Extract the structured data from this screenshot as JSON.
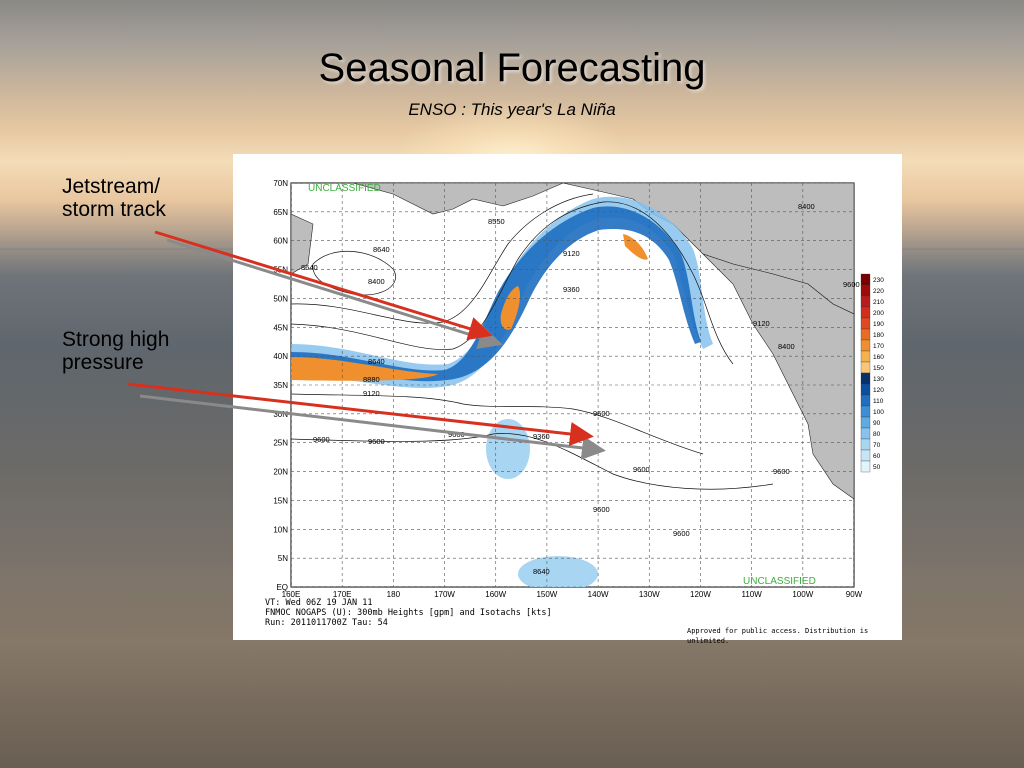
{
  "slide": {
    "title": "Seasonal Forecasting",
    "subtitle": "ENSO : This year's La Niña"
  },
  "annotations": {
    "jetstream": [
      "Jetstream/",
      "storm track"
    ],
    "high_pressure": [
      "Strong high",
      "pressure"
    ]
  },
  "map": {
    "lat_labels": [
      "70N",
      "65N",
      "60N",
      "55N",
      "50N",
      "45N",
      "40N",
      "35N",
      "30N",
      "25N",
      "20N",
      "15N",
      "10N",
      "5N",
      "EQ"
    ],
    "lon_labels": [
      "160E",
      "170E",
      "180",
      "170W",
      "160W",
      "150W",
      "140W",
      "130W",
      "120W",
      "110W",
      "100W",
      "90W"
    ],
    "classification_top": "UNCLASSIFIED",
    "classification_bottom": "UNCLASSIFIED",
    "legend_values": [
      "230",
      "220",
      "210",
      "200",
      "190",
      "180",
      "170",
      "160",
      "150",
      "130",
      "120",
      "110",
      "100",
      "90",
      "80",
      "70",
      "60",
      "50"
    ],
    "legend_colors": [
      "#7a0000",
      "#9e0b0b",
      "#b81c1c",
      "#d22d1f",
      "#e0491f",
      "#ea6b23",
      "#f08f2d",
      "#f6b14a",
      "#f8c674",
      "#08306b",
      "#0b4fa0",
      "#1e6fc0",
      "#3b8fd6",
      "#5eaae3",
      "#86c2ec",
      "#a8d6f2",
      "#c6e6f7",
      "#e2f3fb"
    ],
    "contour_labels": [
      "8400",
      "8550",
      "8640",
      "8640",
      "8400",
      "9120",
      "9360",
      "8880",
      "9120",
      "8640",
      "9360",
      "9600",
      "9600",
      "9600",
      "9600",
      "9600",
      "9600",
      "9600",
      "9600",
      "9600",
      "8400",
      "9120",
      "8640"
    ],
    "footer": {
      "line1": "VT: Wed 06Z 19 JAN 11",
      "line2": "FNMOC NOGAPS (U): 300mb Heights [gpm] and Isotachs [kts]",
      "line3": "Run: 2011011700Z Tau: 54",
      "approval": "Approved for public access. Distribution is unlimited."
    }
  },
  "colors": {
    "arrow_red": "#d7301f",
    "arrow_gray": "#8a8a8a",
    "land": "#bdbdbd",
    "jet_core": "#f08f2d"
  }
}
